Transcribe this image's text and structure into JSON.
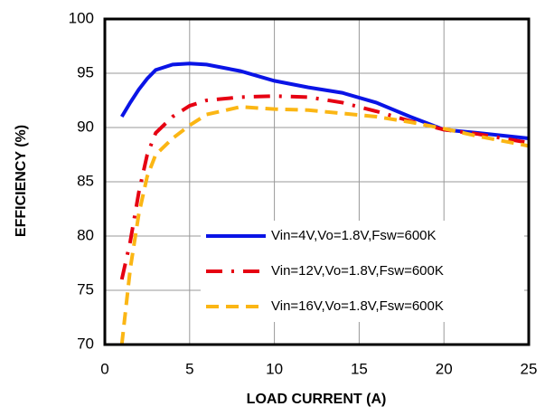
{
  "chart_data": {
    "type": "line",
    "x_label": "LOAD CURRENT (A)",
    "y_label": "EFFICIENCY (%)",
    "x": [
      1,
      1.5,
      2,
      2.5,
      3,
      4,
      5,
      6,
      8,
      10,
      12,
      14,
      16,
      18,
      20,
      22,
      25
    ],
    "series": [
      {
        "name": "Vin=4V,Vo=1.8V,Fsw=600K",
        "color": "#0a14e6",
        "style": "solid",
        "values": [
          91,
          92.3,
          93.5,
          94.5,
          95.3,
          95.8,
          95.9,
          95.8,
          95.2,
          94.3,
          93.7,
          93.2,
          92.3,
          91,
          89.8,
          89.5,
          89
        ]
      },
      {
        "name": "Vin=12V,Vo=1.8V,Fsw=600K",
        "color": "#e60012",
        "style": "dashdot",
        "values": [
          76,
          79.5,
          84,
          87.5,
          89.5,
          91,
          92,
          92.5,
          92.8,
          92.9,
          92.8,
          92.3,
          91.5,
          90.6,
          89.8,
          89.4,
          88.6
        ]
      },
      {
        "name": "Vin=16V,Vo=1.8V,Fsw=600K",
        "color": "#fbb614",
        "style": "dashed",
        "values": [
          70,
          77,
          82,
          85.5,
          87.5,
          89,
          90.2,
          91.2,
          91.9,
          91.7,
          91.6,
          91.3,
          91,
          90.5,
          89.9,
          89.2,
          88.3
        ]
      }
    ],
    "xlim": [
      0,
      25
    ],
    "xticks": [
      0,
      5,
      10,
      15,
      20,
      25
    ],
    "ylim": [
      70,
      100
    ],
    "yticks": [
      70,
      75,
      80,
      85,
      90,
      95,
      100
    ],
    "grid": true
  }
}
